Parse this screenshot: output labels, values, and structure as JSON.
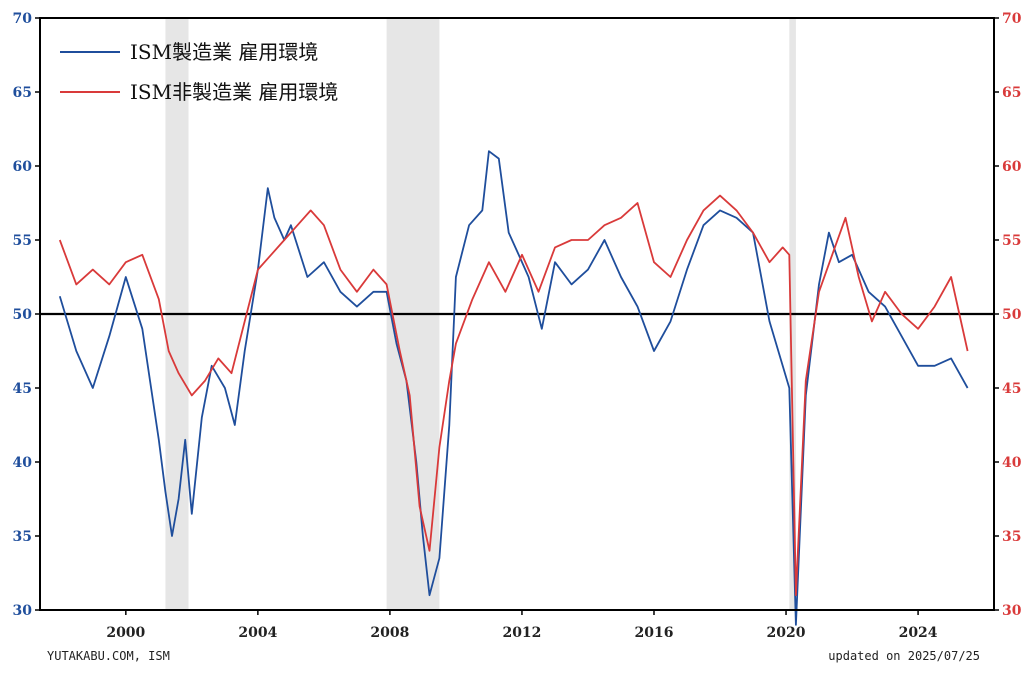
{
  "footer": {
    "source": "YUTAKABU.COM, ISM",
    "updated": "updated on 2025/07/25"
  },
  "chart_data": {
    "type": "line",
    "title": "",
    "xlabel": "",
    "ylabel_left": "",
    "ylabel_right": "",
    "x_range": [
      1997.4,
      2026.3
    ],
    "x_ticks": [
      "2000",
      "2004",
      "2008",
      "2012",
      "2016",
      "2020",
      "2024"
    ],
    "y_left_range": [
      30,
      70
    ],
    "y_right_range": [
      30,
      70
    ],
    "y_ticks": [
      30,
      35,
      40,
      45,
      50,
      55,
      60,
      65,
      70
    ],
    "reference_line": 50,
    "legend_position": "top-left",
    "colors": {
      "manufacturing": "#1f4e9c",
      "services": "#d93a3a",
      "recession": "#e6e6e6",
      "axis": "#000000"
    },
    "recession_periods": [
      [
        2001.2,
        2001.9
      ],
      [
        2007.9,
        2009.5
      ],
      [
        2020.1,
        2020.3
      ]
    ],
    "series": [
      {
        "name": "ISM製造業 雇用環境",
        "axis": "left",
        "x": [
          1998.0,
          1998.5,
          1999.0,
          1999.5,
          2000.0,
          2000.5,
          2001.0,
          2001.2,
          2001.4,
          2001.6,
          2001.8,
          2002.0,
          2002.3,
          2002.6,
          2003.0,
          2003.3,
          2003.6,
          2004.0,
          2004.3,
          2004.5,
          2004.8,
          2005.0,
          2005.5,
          2006.0,
          2006.5,
          2007.0,
          2007.5,
          2007.9,
          2008.2,
          2008.5,
          2008.8,
          2009.0,
          2009.2,
          2009.5,
          2009.8,
          2010.0,
          2010.4,
          2010.8,
          2011.0,
          2011.3,
          2011.6,
          2011.9,
          2012.2,
          2012.6,
          2013.0,
          2013.5,
          2014.0,
          2014.5,
          2015.0,
          2015.5,
          2016.0,
          2016.5,
          2017.0,
          2017.5,
          2018.0,
          2018.5,
          2019.0,
          2019.5,
          2019.9,
          2020.1,
          2020.3,
          2020.6,
          2021.0,
          2021.3,
          2021.6,
          2022.0,
          2022.5,
          2023.0,
          2023.5,
          2024.0,
          2024.5,
          2025.0,
          2025.5
        ],
        "y": [
          51.2,
          47.5,
          45.0,
          48.5,
          52.5,
          49.0,
          41.5,
          38.0,
          35.0,
          37.5,
          41.5,
          36.5,
          43.0,
          46.5,
          45.0,
          42.5,
          47.5,
          53.0,
          58.5,
          56.5,
          55.0,
          56.0,
          52.5,
          53.5,
          51.5,
          50.5,
          51.5,
          51.5,
          48.0,
          45.5,
          40.0,
          35.0,
          31.0,
          33.5,
          42.5,
          52.5,
          56.0,
          57.0,
          61.0,
          60.5,
          55.5,
          54.0,
          52.5,
          49.0,
          53.5,
          52.0,
          53.0,
          55.0,
          52.5,
          50.5,
          47.5,
          49.5,
          53.0,
          56.0,
          57.0,
          56.5,
          55.5,
          49.5,
          46.5,
          45.0,
          29.0,
          44.5,
          52.0,
          55.5,
          53.5,
          54.0,
          51.5,
          50.5,
          48.5,
          46.5,
          46.5,
          47.0,
          45.0
        ]
      },
      {
        "name": "ISM非製造業 雇用環境",
        "axis": "right",
        "x": [
          1998.0,
          1998.5,
          1999.0,
          1999.5,
          2000.0,
          2000.5,
          2001.0,
          2001.3,
          2001.6,
          2002.0,
          2002.4,
          2002.8,
          2003.2,
          2003.6,
          2004.0,
          2004.4,
          2004.8,
          2005.2,
          2005.6,
          2006.0,
          2006.5,
          2007.0,
          2007.5,
          2007.9,
          2008.3,
          2008.6,
          2008.9,
          2009.2,
          2009.5,
          2009.8,
          2010.0,
          2010.5,
          2011.0,
          2011.5,
          2012.0,
          2012.5,
          2013.0,
          2013.5,
          2014.0,
          2014.5,
          2015.0,
          2015.5,
          2016.0,
          2016.5,
          2017.0,
          2017.5,
          2018.0,
          2018.5,
          2019.0,
          2019.5,
          2019.9,
          2020.1,
          2020.3,
          2020.6,
          2021.0,
          2021.4,
          2021.8,
          2022.2,
          2022.6,
          2023.0,
          2023.5,
          2024.0,
          2024.5,
          2025.0,
          2025.5
        ],
        "y": [
          55.0,
          52.0,
          53.0,
          52.0,
          53.5,
          54.0,
          51.0,
          47.5,
          46.0,
          44.5,
          45.5,
          47.0,
          46.0,
          49.5,
          53.0,
          54.0,
          55.0,
          56.0,
          57.0,
          56.0,
          53.0,
          51.5,
          53.0,
          52.0,
          47.5,
          44.5,
          37.0,
          34.0,
          41.0,
          45.5,
          48.0,
          51.0,
          53.5,
          51.5,
          54.0,
          51.5,
          54.5,
          55.0,
          55.0,
          56.0,
          56.5,
          57.5,
          53.5,
          52.5,
          55.0,
          57.0,
          58.0,
          57.0,
          55.5,
          53.5,
          54.5,
          54.0,
          31.0,
          45.5,
          51.5,
          54.0,
          56.5,
          52.5,
          49.5,
          51.5,
          50.0,
          49.0,
          50.5,
          52.5,
          47.5
        ]
      }
    ]
  }
}
